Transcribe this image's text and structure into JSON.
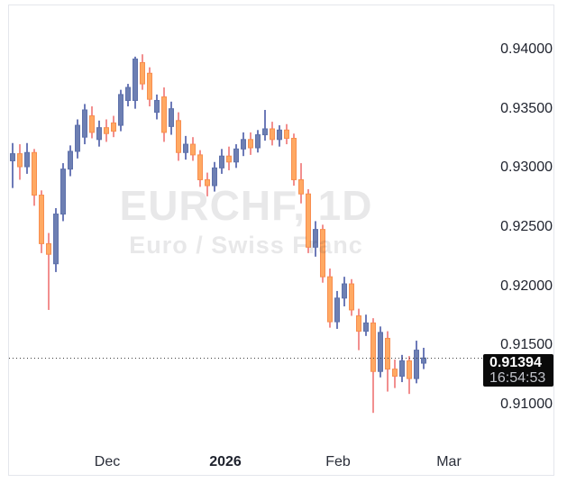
{
  "widget": {
    "name": "EURCHF daily candlestick chart"
  },
  "watermark": {
    "line1": "EURCHF, 1D",
    "line2": "Euro / Swiss Franc"
  },
  "price_badge": {
    "price": "0.91394",
    "countdown": "16:54:53"
  },
  "price_axis": {
    "ticks": [
      {
        "label": "0.94000",
        "value": 0.94
      },
      {
        "label": "0.93500",
        "value": 0.935
      },
      {
        "label": "0.93000",
        "value": 0.93
      },
      {
        "label": "0.92500",
        "value": 0.925
      },
      {
        "label": "0.92000",
        "value": 0.92
      },
      {
        "label": "0.91500",
        "value": 0.915
      },
      {
        "label": "0.91000",
        "value": 0.91
      }
    ]
  },
  "time_axis": {
    "ticks": [
      {
        "label": "Dec",
        "x": 119,
        "bold": false
      },
      {
        "label": "2026",
        "x": 250,
        "bold": true
      },
      {
        "label": "Feb",
        "x": 375,
        "bold": false
      },
      {
        "label": "Mar",
        "x": 498,
        "bold": false
      }
    ]
  },
  "colors": {
    "up_body": "#6d7fb3",
    "up_border": "#5e71ab",
    "up_wick": "#3d4ea0",
    "down_body": "#ffa963",
    "down_border": "#f88e4f",
    "down_wick": "#ee6a6a",
    "axis_text": "#1e222d",
    "time_text": "#2a2e39",
    "watermark": "rgba(41,45,59,0.11)",
    "frame_border": "#e4e6ec",
    "badge_bg": "#0a0a0a",
    "badge_price": "#ffffff",
    "badge_countdown": "#c2c4cb",
    "price_line": "#3e3e3e",
    "background": "#ffffff"
  },
  "chart_data": {
    "type": "candlestick",
    "symbol": "EURCHF",
    "interval": "1D",
    "description": "Euro / Swiss Franc",
    "title": "EURCHF, 1D",
    "last_price": 0.91394,
    "countdown": "16:54:53",
    "y_ticks": [
      0.94,
      0.935,
      0.93,
      0.925,
      0.92,
      0.915,
      0.91
    ],
    "x_tick_labels": [
      "Dec",
      "2026",
      "Feb",
      "Mar"
    ],
    "ylim_visible": [
      0.906,
      0.9437
    ],
    "grid": false,
    "legend_position": "none",
    "n_candles": 58,
    "ohlc_order": [
      "open",
      "high",
      "low",
      "close"
    ],
    "candles": [
      [
        0.9306,
        0.9321,
        0.9283,
        0.9312
      ],
      [
        0.9312,
        0.932,
        0.929,
        0.9301
      ],
      [
        0.9301,
        0.9321,
        0.9295,
        0.9313
      ],
      [
        0.9313,
        0.9316,
        0.9268,
        0.9277
      ],
      [
        0.9277,
        0.9281,
        0.9228,
        0.9236
      ],
      [
        0.9236,
        0.9245,
        0.918,
        0.9227
      ],
      [
        0.9219,
        0.9266,
        0.9212,
        0.9261
      ],
      [
        0.9261,
        0.9304,
        0.9255,
        0.9299
      ],
      [
        0.9299,
        0.9319,
        0.9293,
        0.9314
      ],
      [
        0.9314,
        0.9341,
        0.9308,
        0.9336
      ],
      [
        0.9326,
        0.9354,
        0.932,
        0.9349
      ],
      [
        0.9344,
        0.9352,
        0.9325,
        0.933
      ],
      [
        0.9324,
        0.934,
        0.9318,
        0.9334
      ],
      [
        0.9334,
        0.9341,
        0.9322,
        0.9329
      ],
      [
        0.9338,
        0.9344,
        0.9326,
        0.9331
      ],
      [
        0.9336,
        0.9366,
        0.9331,
        0.9362
      ],
      [
        0.9357,
        0.9371,
        0.9352,
        0.9368
      ],
      [
        0.9357,
        0.9394,
        0.935,
        0.9392
      ],
      [
        0.9389,
        0.9396,
        0.9366,
        0.9371
      ],
      [
        0.938,
        0.9385,
        0.9352,
        0.9358
      ],
      [
        0.9347,
        0.9362,
        0.9341,
        0.9357
      ],
      [
        0.936,
        0.9368,
        0.9322,
        0.933
      ],
      [
        0.9335,
        0.9356,
        0.9328,
        0.935
      ],
      [
        0.934,
        0.9347,
        0.9306,
        0.9313
      ],
      [
        0.9313,
        0.9327,
        0.9307,
        0.932
      ],
      [
        0.932,
        0.9326,
        0.9306,
        0.9311
      ],
      [
        0.9311,
        0.9315,
        0.9284,
        0.929
      ],
      [
        0.929,
        0.9296,
        0.9276,
        0.9285
      ],
      [
        0.9285,
        0.9305,
        0.928,
        0.93
      ],
      [
        0.93,
        0.9316,
        0.9295,
        0.931
      ],
      [
        0.931,
        0.9318,
        0.9298,
        0.9305
      ],
      [
        0.9305,
        0.932,
        0.93,
        0.9316
      ],
      [
        0.9316,
        0.933,
        0.931,
        0.9324
      ],
      [
        0.9324,
        0.933,
        0.9311,
        0.9317
      ],
      [
        0.9317,
        0.9332,
        0.9313,
        0.9328
      ],
      [
        0.9328,
        0.9349,
        0.9323,
        0.9333
      ],
      [
        0.9333,
        0.9339,
        0.9319,
        0.9324
      ],
      [
        0.9324,
        0.9336,
        0.9318,
        0.9332
      ],
      [
        0.9332,
        0.9337,
        0.932,
        0.9325
      ],
      [
        0.9325,
        0.9329,
        0.9285,
        0.929
      ],
      [
        0.929,
        0.9304,
        0.927,
        0.9278
      ],
      [
        0.9278,
        0.9282,
        0.9228,
        0.9233
      ],
      [
        0.9233,
        0.9255,
        0.9225,
        0.9248
      ],
      [
        0.9248,
        0.9252,
        0.9203,
        0.9208
      ],
      [
        0.9208,
        0.9215,
        0.9165,
        0.917
      ],
      [
        0.917,
        0.9196,
        0.9164,
        0.919
      ],
      [
        0.919,
        0.9208,
        0.9183,
        0.9202
      ],
      [
        0.9202,
        0.9206,
        0.9175,
        0.918
      ],
      [
        0.9175,
        0.9181,
        0.9146,
        0.9162
      ],
      [
        0.9162,
        0.9176,
        0.9158,
        0.9169
      ],
      [
        0.9169,
        0.9173,
        0.9093,
        0.9128
      ],
      [
        0.9128,
        0.9166,
        0.9123,
        0.9161
      ],
      [
        0.9156,
        0.9162,
        0.9111,
        0.913
      ],
      [
        0.913,
        0.9138,
        0.9114,
        0.9124
      ],
      [
        0.9124,
        0.9142,
        0.9119,
        0.9137
      ],
      [
        0.9137,
        0.9141,
        0.9109,
        0.9122
      ],
      [
        0.9122,
        0.9154,
        0.9118,
        0.9146
      ],
      [
        0.9135,
        0.9148,
        0.913,
        0.91394
      ]
    ]
  }
}
